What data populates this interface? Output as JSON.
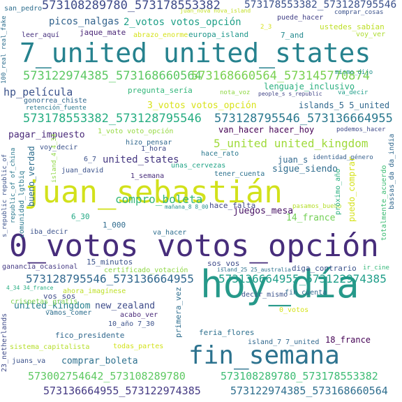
{
  "words": [
    {
      "text": "hoy_día",
      "color": "#26998a"
    },
    {
      "text": "0_votos votos_opción",
      "color": "#472d7b"
    },
    {
      "text": "juan_sebastián",
      "color": "#d2e11b"
    },
    {
      "text": "7_united united_states",
      "color": "#26828e"
    },
    {
      "text": "fin_semana",
      "color": "#2c728e"
    },
    {
      "text": "573108289780_573178553382",
      "color": "#3e4a89"
    },
    {
      "text": "573178553382_573128795546",
      "color": "#3b518b"
    },
    {
      "text": "573122974385_573168660564",
      "color": "#5cc863"
    },
    {
      "text": "573168660564_573145770874",
      "color": "#7ad151"
    },
    {
      "text": "573178553382_573128795546",
      "color": "#26ad81"
    },
    {
      "text": "573128795546_573136664955",
      "color": "#2a788e"
    },
    {
      "text": "573128795546_573136664955",
      "color": "#31688e"
    },
    {
      "text": "573136664955_573122974385",
      "color": "#1f9e89"
    },
    {
      "text": "573002754642_573108289780",
      "color": "#5ec962"
    },
    {
      "text": "573108289780_573178553382",
      "color": "#3dbc74"
    },
    {
      "text": "573136664955_573122974385",
      "color": "#443983"
    },
    {
      "text": "573122974385_573168660564",
      "color": "#2e6e8e"
    },
    {
      "text": "compro_boleta",
      "color": "#35b779"
    },
    {
      "text": "5_united united_kingdom",
      "color": "#9fda3a"
    },
    {
      "text": "hp_película",
      "color": "#3b528b"
    },
    {
      "text": "picos_nalgas",
      "color": "#33638d"
    },
    {
      "text": "2_votos votos_opción",
      "color": "#1fa088"
    },
    {
      "text": "3_votos votos_opción",
      "color": "#d8e219"
    },
    {
      "text": "united_states",
      "color": "#453781"
    },
    {
      "text": "new_zealand",
      "color": "#3e4c8a"
    },
    {
      "text": "united_kingdom",
      "color": "#277f8e"
    },
    {
      "text": "comprar_boleta",
      "color": "#2d708e"
    },
    {
      "text": "pagar_impuesto",
      "color": "#482878"
    },
    {
      "text": "van_hacer hacer_hoy",
      "color": "#440154"
    },
    {
      "text": "lenguaje_inclusivo",
      "color": "#29af7f"
    },
    {
      "text": "islands_5 5_united",
      "color": "#31688e"
    },
    {
      "text": "sigue_siendo",
      "color": "#2f6c8e"
    },
    {
      "text": "juegos_mesa",
      "color": "#471164"
    },
    {
      "text": "14_france",
      "color": "#73d056"
    },
    {
      "text": "18_france",
      "color": "#440154"
    },
    {
      "text": "ustedes_sabían",
      "color": "#bddf26"
    },
    {
      "text": "pregunta_sería",
      "color": "#32b67a"
    },
    {
      "text": "jaque_mate",
      "color": "#482475"
    },
    {
      "text": "europa_island",
      "color": "#1f978b"
    },
    {
      "text": "7_and",
      "color": "#23898e"
    },
    {
      "text": "leer_aquí",
      "color": "#46307e"
    },
    {
      "text": "abrazo_enorme",
      "color": "#d5e21a"
    },
    {
      "text": "san_pedro",
      "color": "#2e6e8e"
    },
    {
      "text": "puede_hacer",
      "color": "#424086"
    },
    {
      "text": "comprar_cosas",
      "color": "#3b528b"
    },
    {
      "text": "voy_ver",
      "color": "#addc30"
    },
    {
      "text": "mismo_dijo",
      "color": "#21918c"
    },
    {
      "text": "nota_voz",
      "color": "#8fd744"
    },
    {
      "text": "va_decir",
      "color": "#1f9e89"
    },
    {
      "text": "people_s s_republic",
      "color": "#414487"
    },
    {
      "text": "gonorrea_chiste",
      "color": "#31688e"
    },
    {
      "text": "retención_fuente",
      "color": "#2a788e"
    },
    {
      "text": "1_voto voto_opción",
      "color": "#95d840"
    },
    {
      "text": "podemos_hacer",
      "color": "#3e4a89"
    },
    {
      "text": "voy_decir",
      "color": "#3b528b"
    },
    {
      "text": "hizo_pensar",
      "color": "#31688e"
    },
    {
      "text": "1_hora",
      "color": "#3e4a89"
    },
    {
      "text": "hace_rato",
      "color": "#2a788e"
    },
    {
      "text": "identidad_género",
      "color": "#355f8d"
    },
    {
      "text": "unas_cervezas",
      "color": "#20a386"
    },
    {
      "text": "tener_cuenta",
      "color": "#2c718e"
    },
    {
      "text": "juan_s",
      "color": "#31688e"
    },
    {
      "text": "juan_david",
      "color": "#3b528b"
    },
    {
      "text": "1_semana",
      "color": "#472c7a"
    },
    {
      "text": "6_7",
      "color": "#3b518b"
    },
    {
      "text": "6_30",
      "color": "#22a884"
    },
    {
      "text": "1_000",
      "color": "#2f6b8e"
    },
    {
      "text": "hace_falta",
      "color": "#404588"
    },
    {
      "text": "mañana_8 8_00",
      "color": "#21918c"
    },
    {
      "text": "pasamos_bueno",
      "color": "#b5de2b"
    },
    {
      "text": "iba_decir",
      "color": "#3b528b"
    },
    {
      "text": "va_hacer",
      "color": "#2e6e8e"
    },
    {
      "text": "15_minutos",
      "color": "#3b528b"
    },
    {
      "text": "sos_vos",
      "color": "#3e4a89"
    },
    {
      "text": "ganancia_ocasional",
      "color": "#443983"
    },
    {
      "text": "certificado_votación",
      "color": "#8fd744"
    },
    {
      "text": "island_25 25_australia",
      "color": "#2c728e"
    },
    {
      "text": "diga_contrario",
      "color": "#3b528b"
    },
    {
      "text": "ir_cine",
      "color": "#35b779"
    },
    {
      "text": "4_34 34_france",
      "color": "#26ad81"
    },
    {
      "text": "ahora_imagínese",
      "color": "#bddf26"
    },
    {
      "text": "vos_sos",
      "color": "#3e4a89"
    },
    {
      "text": "crispetas_gratis",
      "color": "#7ad151"
    },
    {
      "text": "vamos_comer",
      "color": "#2e6e8e"
    },
    {
      "text": "acabo_ver",
      "color": "#482878"
    },
    {
      "text": "10_año 7_30",
      "color": "#3b528b"
    },
    {
      "text": "fico_presidente",
      "color": "#31688e"
    },
    {
      "text": "sistema_capitalista",
      "color": "#b5de2b"
    },
    {
      "text": "todas_partes",
      "color": "#d2e21b"
    },
    {
      "text": "juans_va",
      "color": "#3b528b"
    },
    {
      "text": "decir_mismo",
      "color": "#3b528b"
    },
    {
      "text": "fin_cuenta",
      "color": "#31688e"
    },
    {
      "text": "0_votos",
      "color": "#d5e21a"
    },
    {
      "text": "feria_flores",
      "color": "#2d708e"
    },
    {
      "text": "island_7 7_united",
      "color": "#31688e"
    },
    {
      "text": "juan_nova nova_island",
      "color": "#c2df23"
    },
    {
      "text": "2_3",
      "color": "#d5e21a"
    },
    {
      "text": "100_real real_fake",
      "color": "#2e6e8e"
    },
    {
      "text": "s_republic republic_of",
      "color": "#3b528b"
    },
    {
      "text": "republic_of of_china",
      "color": "#2a788e"
    },
    {
      "text": "comunidad_lgtbiq",
      "color": "#2a788e"
    },
    {
      "text": "bueno_verdad",
      "color": "#2e6e8e"
    },
    {
      "text": "island_4 4_34",
      "color": "#8fd744"
    },
    {
      "text": "23_netherlands",
      "color": "#3e4a89"
    },
    {
      "text": "primera_vez",
      "color": "#2e6e8e"
    },
    {
      "text": "próximo_año",
      "color": "#29af7f"
    },
    {
      "text": "puedo_comprar",
      "color": "#d5e21a"
    },
    {
      "text": "totalmente_acuerdo",
      "color": "#3dbc74"
    },
    {
      "text": "bassas_da da_india",
      "color": "#31688e"
    }
  ]
}
